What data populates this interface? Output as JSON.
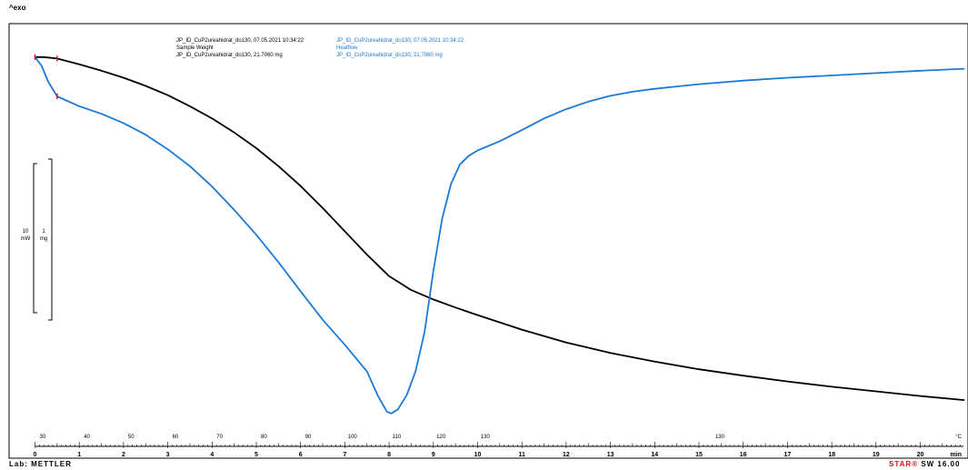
{
  "header": {
    "exo_label": "^exo"
  },
  "footer": {
    "lab_label": "Lab: METTLER",
    "software_star": "STAR",
    "software_mark": "®",
    "software_version": " SW 16.00"
  },
  "legend": {
    "weight_curve": {
      "line1": "JP_ID_CuP2ureahidrat_do130, 07.05.2021 10:34:22",
      "line2": "Sample Weight",
      "line3": "JP_ID_CuP2ureahidrat_do130, 21.7060 mg",
      "color": "#000000"
    },
    "heatflow_curve": {
      "line1": "JP_ID_CuP2ureahidrat_do130, 07.05.2021 10:34:22",
      "line2": "Heatflow",
      "line3": "JP_ID_CuP2ureahidrat_do130, 21.7060 mg",
      "color": "#1a7ad6"
    }
  },
  "scale_bars": {
    "heatflow": {
      "value": "10",
      "unit": "mW"
    },
    "weight": {
      "value": "1",
      "unit": "mg"
    }
  },
  "chart_data": {
    "type": "line",
    "title": "",
    "xlabel": "min",
    "x_unit": "min",
    "xlim": [
      0,
      21
    ],
    "x_ticks": [
      0,
      1,
      2,
      3,
      4,
      5,
      6,
      7,
      8,
      9,
      10,
      11,
      12,
      13,
      14,
      15,
      16,
      17,
      18,
      19,
      20
    ],
    "temperature_axis": {
      "unit": "°C",
      "labels": [
        {
          "time_min": 0.5,
          "label": "30"
        },
        {
          "time_min": 1.5,
          "label": "40"
        },
        {
          "time_min": 2.5,
          "label": "50"
        },
        {
          "time_min": 3.5,
          "label": "60"
        },
        {
          "time_min": 4.5,
          "label": "70"
        },
        {
          "time_min": 5.5,
          "label": "80"
        },
        {
          "time_min": 6.5,
          "label": "90"
        },
        {
          "time_min": 7.5,
          "label": "100"
        },
        {
          "time_min": 8.5,
          "label": "110"
        },
        {
          "time_min": 9.5,
          "label": "120"
        },
        {
          "time_min": 10.5,
          "label": "130"
        },
        {
          "time_min": 15.8,
          "label": "130"
        }
      ]
    },
    "grid": false,
    "y_range_units": [
      0,
      100
    ],
    "series": [
      {
        "name": "Sample Weight",
        "color": "#000000",
        "points": [
          [
            0,
            3.5
          ],
          [
            0.2,
            3.5
          ],
          [
            0.5,
            3.0
          ],
          [
            1.0,
            1.0
          ],
          [
            1.5,
            -1.2
          ],
          [
            2.0,
            -3.6
          ],
          [
            2.5,
            -6.4
          ],
          [
            3.0,
            -9.6
          ],
          [
            3.5,
            -13.4
          ],
          [
            4.0,
            -17.6
          ],
          [
            4.5,
            -22.4
          ],
          [
            5.0,
            -27.8
          ],
          [
            5.5,
            -34.0
          ],
          [
            6.0,
            -40.8
          ],
          [
            6.5,
            -48.4
          ],
          [
            7.0,
            -56.4
          ],
          [
            7.5,
            -64.4
          ],
          [
            8.0,
            -71.8
          ],
          [
            8.5,
            -76.6
          ],
          [
            9.0,
            -79.8
          ],
          [
            9.5,
            -82.6
          ],
          [
            10.0,
            -85.2
          ],
          [
            11.0,
            -90.2
          ],
          [
            12.0,
            -94.6
          ],
          [
            13.0,
            -98.2
          ],
          [
            14.0,
            -101.2
          ],
          [
            15.0,
            -103.8
          ],
          [
            16.0,
            -106.0
          ],
          [
            17.0,
            -108.0
          ],
          [
            18.0,
            -109.8
          ],
          [
            19.0,
            -111.4
          ],
          [
            20.0,
            -113.0
          ],
          [
            21.0,
            -114.4
          ]
        ]
      },
      {
        "name": "Heatflow",
        "color": "#1a7ad6",
        "points": [
          [
            0,
            3.5
          ],
          [
            0.15,
            0.5
          ],
          [
            0.3,
            -5.0
          ],
          [
            0.5,
            -10.0
          ],
          [
            1.0,
            -13.4
          ],
          [
            1.5,
            -16.0
          ],
          [
            2.0,
            -19.2
          ],
          [
            2.5,
            -23.2
          ],
          [
            3.0,
            -28.2
          ],
          [
            3.5,
            -34.0
          ],
          [
            4.0,
            -41.0
          ],
          [
            4.5,
            -49.0
          ],
          [
            5.0,
            -57.6
          ],
          [
            5.5,
            -67.0
          ],
          [
            6.0,
            -77.0
          ],
          [
            6.5,
            -86.8
          ],
          [
            7.0,
            -95.4
          ],
          [
            7.5,
            -104.6
          ],
          [
            7.75,
            -113.0
          ],
          [
            7.95,
            -118.4
          ],
          [
            8.05,
            -119.0
          ],
          [
            8.2,
            -117.6
          ],
          [
            8.4,
            -112.6
          ],
          [
            8.6,
            -104.4
          ],
          [
            8.8,
            -91.0
          ],
          [
            9.0,
            -70.0
          ],
          [
            9.2,
            -52.0
          ],
          [
            9.4,
            -40.0
          ],
          [
            9.6,
            -33.4
          ],
          [
            9.8,
            -30.4
          ],
          [
            10.0,
            -28.6
          ],
          [
            10.5,
            -25.4
          ],
          [
            11.0,
            -21.6
          ],
          [
            11.5,
            -17.6
          ],
          [
            12.0,
            -14.4
          ],
          [
            12.5,
            -11.8
          ],
          [
            13.0,
            -9.8
          ],
          [
            13.5,
            -8.4
          ],
          [
            14.0,
            -7.4
          ],
          [
            14.5,
            -6.6
          ],
          [
            15.0,
            -5.8
          ],
          [
            16.0,
            -4.6
          ],
          [
            17.0,
            -3.6
          ],
          [
            18.0,
            -2.8
          ],
          [
            19.0,
            -2.0
          ],
          [
            20.0,
            -1.2
          ],
          [
            21.0,
            -0.5
          ]
        ]
      }
    ],
    "markers": [
      {
        "series": "Sample Weight",
        "time_min": 0.0
      },
      {
        "series": "Sample Weight",
        "time_min": 0.5
      },
      {
        "series": "Heatflow",
        "time_min": 0.5
      }
    ]
  }
}
